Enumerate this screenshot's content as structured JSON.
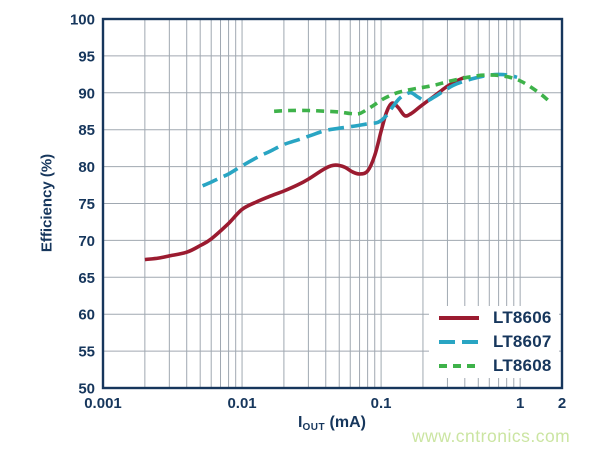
{
  "watermark": "www.cntronics.com",
  "colors": {
    "axis_text": "#16365C",
    "frame": "#16365C",
    "grid": "#A0A8B1",
    "legend_bg": "#FFFFFF",
    "watermark": "#CBE5A2"
  },
  "chart_data": {
    "type": "line",
    "title": "",
    "xlabel_parts": {
      "base": "I",
      "sub": "OUT",
      "rest": " (mA)"
    },
    "ylabel": "Efficiency (%)",
    "x_scale": "log",
    "xlim": [
      0.001,
      2
    ],
    "ylim": [
      50,
      100
    ],
    "grid": true,
    "legend_position": "bottom-right",
    "x_ticks": [
      {
        "v": 0.001,
        "label": "0.001"
      },
      {
        "v": 0.01,
        "label": "0.01"
      },
      {
        "v": 0.1,
        "label": "0.1"
      },
      {
        "v": 1,
        "label": "1"
      },
      {
        "v": 2,
        "label": "2"
      }
    ],
    "y_ticks": [
      {
        "v": 50,
        "label": "50"
      },
      {
        "v": 55,
        "label": "55"
      },
      {
        "v": 60,
        "label": "60"
      },
      {
        "v": 65,
        "label": "65"
      },
      {
        "v": 70,
        "label": "70"
      },
      {
        "v": 75,
        "label": "75"
      },
      {
        "v": 80,
        "label": "80"
      },
      {
        "v": 85,
        "label": "85"
      },
      {
        "v": 90,
        "label": "90"
      },
      {
        "v": 95,
        "label": "95"
      },
      {
        "v": 100,
        "label": "100"
      }
    ],
    "series": [
      {
        "name": "LT8606",
        "color": "#9B1B30",
        "dash": "solid",
        "points": [
          [
            0.002,
            67.4
          ],
          [
            0.0025,
            67.6
          ],
          [
            0.003,
            67.9
          ],
          [
            0.004,
            68.4
          ],
          [
            0.005,
            69.3
          ],
          [
            0.006,
            70.2
          ],
          [
            0.008,
            72.3
          ],
          [
            0.01,
            74.2
          ],
          [
            0.013,
            75.3
          ],
          [
            0.016,
            76.0
          ],
          [
            0.02,
            76.7
          ],
          [
            0.025,
            77.5
          ],
          [
            0.03,
            78.3
          ],
          [
            0.04,
            79.8
          ],
          [
            0.047,
            80.2
          ],
          [
            0.055,
            79.9
          ],
          [
            0.062,
            79.3
          ],
          [
            0.07,
            79.0
          ],
          [
            0.08,
            79.4
          ],
          [
            0.09,
            81.5
          ],
          [
            0.1,
            84.8
          ],
          [
            0.11,
            87.5
          ],
          [
            0.12,
            88.6
          ],
          [
            0.133,
            88.0
          ],
          [
            0.148,
            86.9
          ],
          [
            0.165,
            87.2
          ],
          [
            0.19,
            88.1
          ],
          [
            0.22,
            89.0
          ],
          [
            0.255,
            89.9
          ],
          [
            0.295,
            90.8
          ],
          [
            0.34,
            91.5
          ],
          [
            0.4,
            92.1
          ]
        ]
      },
      {
        "name": "LT8607",
        "color": "#29A5C3",
        "dash": "long",
        "points": [
          [
            0.0052,
            77.4
          ],
          [
            0.006,
            77.9
          ],
          [
            0.007,
            78.5
          ],
          [
            0.008,
            79.0
          ],
          [
            0.01,
            80.1
          ],
          [
            0.013,
            81.3
          ],
          [
            0.016,
            82.1
          ],
          [
            0.02,
            83.0
          ],
          [
            0.026,
            83.7
          ],
          [
            0.032,
            84.3
          ],
          [
            0.04,
            84.9
          ],
          [
            0.05,
            85.2
          ],
          [
            0.065,
            85.5
          ],
          [
            0.08,
            85.8
          ],
          [
            0.095,
            86.0
          ],
          [
            0.108,
            86.8
          ],
          [
            0.12,
            88.0
          ],
          [
            0.135,
            89.2
          ],
          [
            0.15,
            89.8
          ],
          [
            0.165,
            90.0
          ],
          [
            0.185,
            89.4
          ],
          [
            0.21,
            88.9
          ],
          [
            0.24,
            89.4
          ],
          [
            0.28,
            90.2
          ],
          [
            0.33,
            91.0
          ],
          [
            0.4,
            91.6
          ],
          [
            0.5,
            92.1
          ],
          [
            0.6,
            92.4
          ],
          [
            0.7,
            92.5
          ],
          [
            0.82,
            92.4
          ],
          [
            0.95,
            92.1
          ]
        ]
      },
      {
        "name": "LT8608",
        "color": "#3EB24A",
        "dash": "short",
        "points": [
          [
            0.017,
            87.5
          ],
          [
            0.022,
            87.6
          ],
          [
            0.03,
            87.6
          ],
          [
            0.04,
            87.5
          ],
          [
            0.05,
            87.4
          ],
          [
            0.06,
            87.2
          ],
          [
            0.07,
            87.2
          ],
          [
            0.08,
            87.8
          ],
          [
            0.09,
            88.4
          ],
          [
            0.1,
            89.0
          ],
          [
            0.115,
            89.6
          ],
          [
            0.13,
            90.0
          ],
          [
            0.15,
            90.3
          ],
          [
            0.18,
            90.6
          ],
          [
            0.21,
            90.8
          ],
          [
            0.25,
            91.1
          ],
          [
            0.3,
            91.5
          ],
          [
            0.37,
            91.9
          ],
          [
            0.45,
            92.2
          ],
          [
            0.55,
            92.4
          ],
          [
            0.65,
            92.4
          ],
          [
            0.8,
            92.2
          ],
          [
            0.95,
            91.8
          ],
          [
            1.1,
            91.2
          ],
          [
            1.3,
            90.3
          ],
          [
            1.5,
            89.4
          ],
          [
            1.65,
            88.7
          ]
        ]
      }
    ]
  }
}
